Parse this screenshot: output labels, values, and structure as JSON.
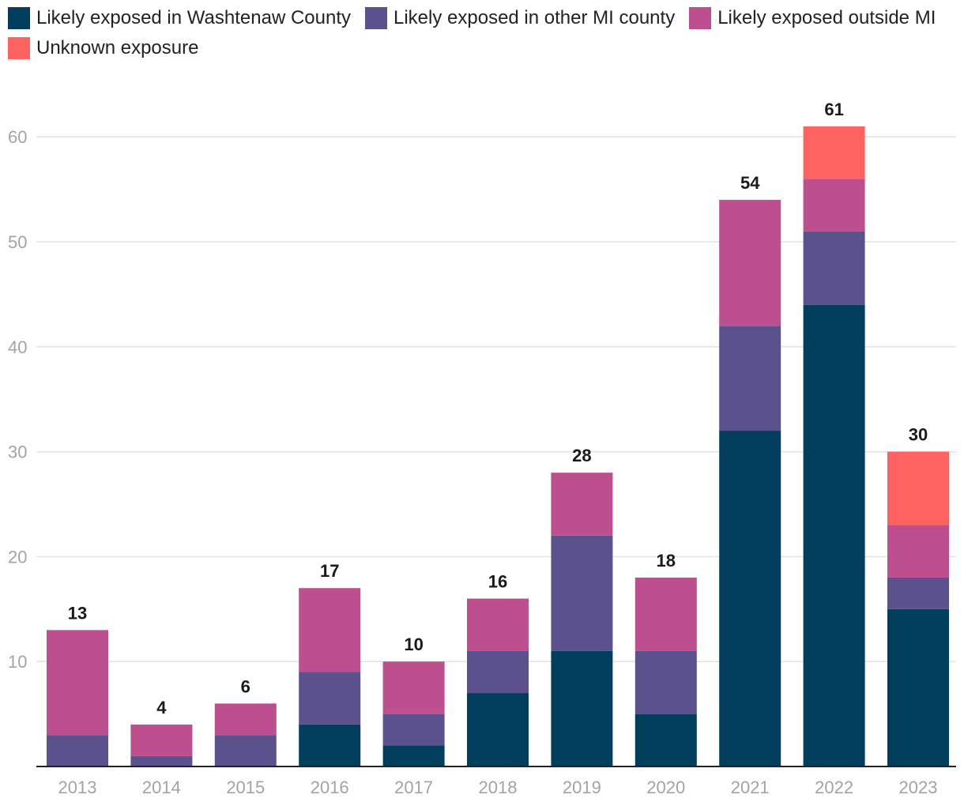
{
  "chart_data": {
    "type": "bar",
    "stacked": true,
    "title": "",
    "xlabel": "",
    "ylabel": "",
    "ylim": [
      0,
      60
    ],
    "yticks": [
      10,
      20,
      30,
      40,
      50,
      60
    ],
    "grid": true,
    "legend_position": "top-left",
    "categories": [
      "2013",
      "2014",
      "2015",
      "2016",
      "2017",
      "2018",
      "2019",
      "2020",
      "2021",
      "2022",
      "2023"
    ],
    "series": [
      {
        "name": "Likely exposed in Washtenaw County",
        "color": "#013f5c",
        "values": [
          0,
          0,
          0,
          4,
          2,
          7,
          11,
          5,
          32,
          44,
          15
        ]
      },
      {
        "name": "Likely exposed in other MI county",
        "color": "#5a518d",
        "values": [
          3,
          1,
          3,
          5,
          3,
          4,
          11,
          6,
          10,
          7,
          3
        ]
      },
      {
        "name": "Likely exposed outside MI",
        "color": "#bd4f8e",
        "values": [
          10,
          3,
          3,
          8,
          5,
          5,
          6,
          7,
          12,
          5,
          5
        ]
      },
      {
        "name": "Unknown exposure",
        "color": "#ff6361",
        "values": [
          0,
          0,
          0,
          0,
          0,
          0,
          0,
          0,
          0,
          5,
          7
        ]
      }
    ],
    "totals": [
      13,
      4,
      6,
      17,
      10,
      16,
      28,
      18,
      54,
      61,
      30
    ]
  }
}
